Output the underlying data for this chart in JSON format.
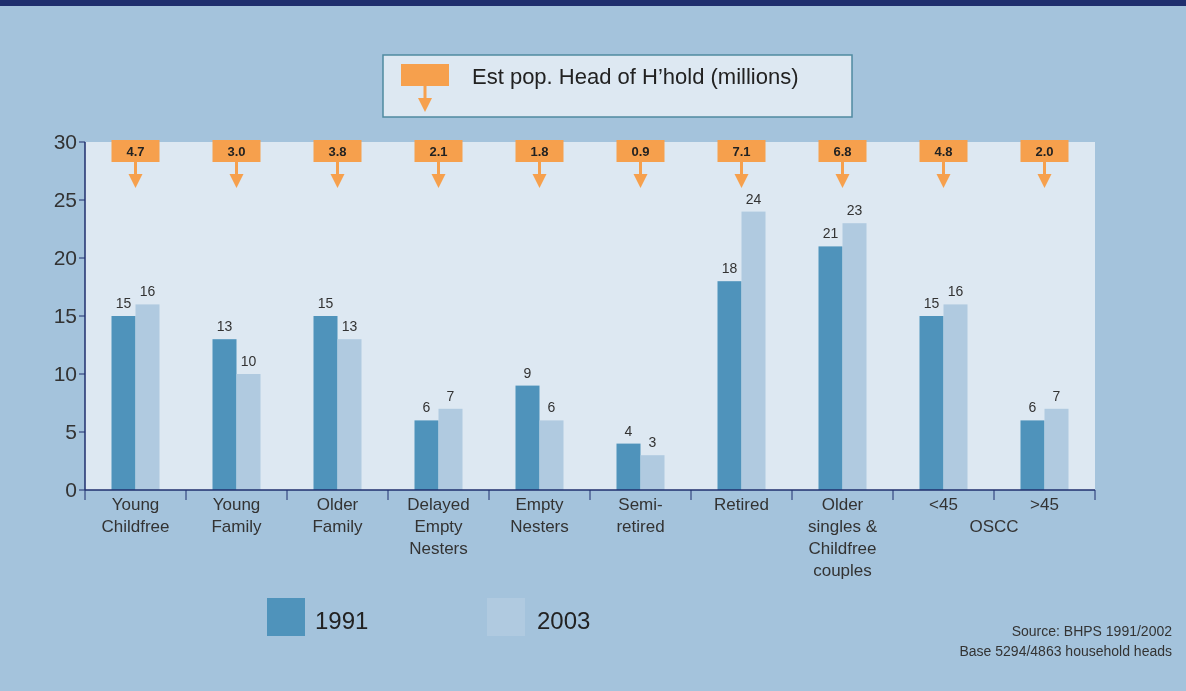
{
  "chart_data": {
    "type": "bar",
    "categories": [
      "Young\nChildfree",
      "Young\nFamily",
      "Older\nFamily",
      "Delayed\nEmpty\nNesters",
      "Empty\nNesters",
      "Semi-\nretired",
      "Retired",
      "Older\nsingles &\nChildfree\ncouples",
      "<45",
      ">45"
    ],
    "series": [
      {
        "name": "1991",
        "color": "#4f93bb",
        "values": [
          15,
          13,
          15,
          6,
          9,
          4,
          18,
          21,
          15,
          6
        ]
      },
      {
        "name": "2003",
        "color": "#b0cae0",
        "values": [
          16,
          10,
          13,
          7,
          6,
          3,
          24,
          23,
          16,
          7
        ]
      }
    ],
    "ylim": [
      0,
      30
    ],
    "yticks": [
      0,
      5,
      10,
      15,
      20,
      25,
      30
    ],
    "grid": false,
    "legend": "bottom",
    "data_labels": true,
    "annotations": [
      "Est pop. Head of H’hold (millions)",
      "OSCC",
      "Source: BHPS 1991/2002",
      "Base 5294/4863 household heads",
      "4.7",
      "3.0",
      "3.8",
      "2.1",
      "1.8",
      "0.9",
      "7.1",
      "6.8",
      "4.8",
      "2.0"
    ]
  }
}
